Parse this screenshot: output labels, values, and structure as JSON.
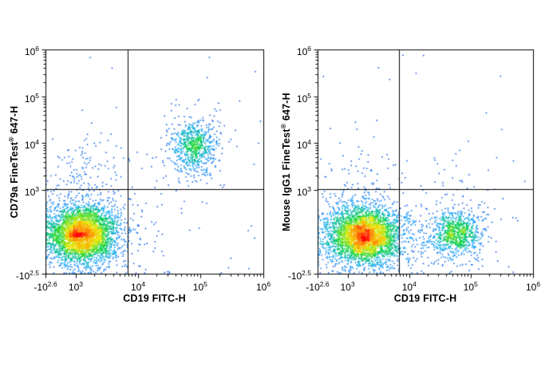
{
  "style": {
    "background": "#ffffff",
    "axis_color": "#000000",
    "colormap": [
      {
        "t": 0.0,
        "c": "#0032d8"
      },
      {
        "t": 0.25,
        "c": "#00a0ff"
      },
      {
        "t": 0.5,
        "c": "#00d23c"
      },
      {
        "t": 0.72,
        "c": "#e8e800"
      },
      {
        "t": 0.88,
        "c": "#ff8c00"
      },
      {
        "t": 1.0,
        "c": "#ff0000"
      }
    ]
  },
  "chart_data": [
    {
      "type": "scatter",
      "subtype": "flow_cytometry_density_dot_plot",
      "title": "",
      "xlabel": "CD19 FITC-H",
      "ylabel_pre": "CD79a  FineTest",
      "ylabel_sup": "®",
      "ylabel_post": " 647-H",
      "x_axis_scale": "biexponential",
      "y_axis_scale": "biexponential",
      "x_ticks": [
        {
          "base": "-10",
          "exp": "2.6",
          "frac": 0.0
        },
        {
          "base": "10",
          "exp": "3",
          "frac": 0.139
        },
        {
          "base": "10",
          "exp": "4",
          "frac": 0.425
        },
        {
          "base": "10",
          "exp": "5",
          "frac": 0.71
        },
        {
          "base": "10",
          "exp": "6",
          "frac": 1.0
        }
      ],
      "y_ticks": [
        {
          "base": "-10",
          "exp": "2.5",
          "frac": 0.0
        },
        {
          "base": "10",
          "exp": "3",
          "frac": 0.374
        },
        {
          "base": "10",
          "exp": "4",
          "frac": 0.583
        },
        {
          "base": "10",
          "exp": "5",
          "frac": 0.79
        },
        {
          "base": "10",
          "exp": "6",
          "frac": 1.0
        }
      ],
      "quadrant": {
        "x_frac": 0.378,
        "y_frac": 0.378
      },
      "populations": [
        {
          "name": "CD19- CD79a- cells",
          "cx": 0.168,
          "cy": 0.175,
          "sx": 0.075,
          "sy": 0.062,
          "n": 3800
        },
        {
          "name": "CD19+ CD79a+ B cells",
          "cx": 0.681,
          "cy": 0.562,
          "sx": 0.048,
          "sy": 0.058,
          "n": 780
        },
        {
          "name": "CD79a-dim scatter",
          "cx": 0.17,
          "cy": 0.46,
          "sx": 0.07,
          "sy": 0.09,
          "n": 120
        },
        {
          "name": "background events",
          "uniform": true,
          "n": 42
        }
      ],
      "seed": 20240101
    },
    {
      "type": "scatter",
      "subtype": "flow_cytometry_density_dot_plot",
      "title": "",
      "xlabel": "CD19 FITC-H",
      "ylabel_pre": "Mouse IgG1  FineTest",
      "ylabel_sup": "®",
      "ylabel_post": " 647-H",
      "x_axis_scale": "biexponential",
      "y_axis_scale": "biexponential",
      "x_ticks": [
        {
          "base": "-10",
          "exp": "2.6",
          "frac": 0.0
        },
        {
          "base": "10",
          "exp": "3",
          "frac": 0.139
        },
        {
          "base": "10",
          "exp": "4",
          "frac": 0.425
        },
        {
          "base": "10",
          "exp": "5",
          "frac": 0.71
        },
        {
          "base": "10",
          "exp": "6",
          "frac": 1.0
        }
      ],
      "y_ticks": [
        {
          "base": "-10",
          "exp": "2.5",
          "frac": 0.0
        },
        {
          "base": "10",
          "exp": "3",
          "frac": 0.374
        },
        {
          "base": "10",
          "exp": "4",
          "frac": 0.583
        },
        {
          "base": "10",
          "exp": "5",
          "frac": 0.79
        },
        {
          "base": "10",
          "exp": "6",
          "frac": 1.0
        }
      ],
      "quadrant": {
        "x_frac": 0.378,
        "y_frac": 0.378
      },
      "populations": [
        {
          "name": "CD19- IgG1-control cells",
          "cx": 0.215,
          "cy": 0.17,
          "sx": 0.082,
          "sy": 0.06,
          "n": 3700
        },
        {
          "name": "CD19+ IgG1-control B cells",
          "cx": 0.64,
          "cy": 0.18,
          "sx": 0.057,
          "sy": 0.05,
          "n": 950
        },
        {
          "name": "scatter above main",
          "cx": 0.2,
          "cy": 0.42,
          "sx": 0.075,
          "sy": 0.09,
          "n": 58
        },
        {
          "name": "scatter above B cells",
          "cx": 0.63,
          "cy": 0.38,
          "sx": 0.05,
          "sy": 0.09,
          "n": 22
        },
        {
          "name": "background events",
          "uniform": true,
          "n": 40
        }
      ],
      "seed": 987654
    }
  ]
}
